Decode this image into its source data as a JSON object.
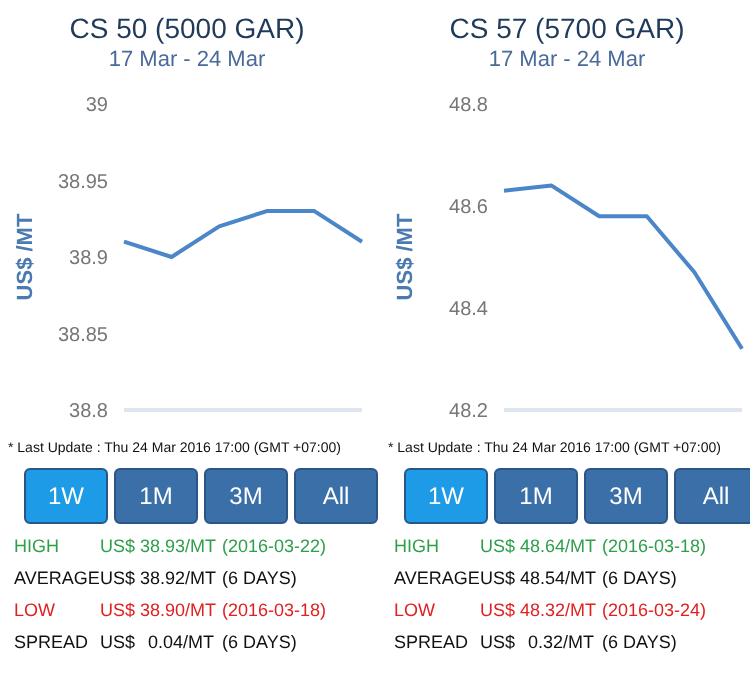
{
  "chart_data": [
    {
      "type": "line",
      "title": "CS 50 (5000 GAR)",
      "subtitle": "17 Mar - 24 Mar",
      "ylabel": "US$ /MT",
      "categories": [
        null,
        null,
        null,
        null,
        null,
        null
      ],
      "series": [
        {
          "color": "#4a86c8",
          "values": [
            38.91,
            38.9,
            38.92,
            38.93,
            38.93,
            38.91
          ]
        }
      ],
      "ylim": [
        38.8,
        39
      ],
      "yticks": [
        38.8,
        38.85,
        38.9,
        38.95,
        39
      ],
      "marker": "none",
      "annotations": [
        "* Last Update : Thu 24 Mar 2016 17:00 (GMT +07:00)",
        "1W",
        "1M",
        "3M",
        "All",
        "HIGH",
        "US$",
        "38.93/MT",
        "(2016-03-22)",
        "AVERAGE",
        "US$",
        "38.92/MT",
        "(6 DAYS)",
        "LOW",
        "US$",
        "38.90/MT",
        "(2016-03-18)",
        "SPREAD",
        "US$",
        "0.04/MT",
        "(6 DAYS)"
      ]
    },
    {
      "type": "line",
      "title": "CS 57 (5700 GAR)",
      "subtitle": "17 Mar - 24 Mar",
      "ylabel": "US$ /MT",
      "categories": [
        null,
        null,
        null,
        null,
        null,
        null
      ],
      "series": [
        {
          "color": "#4a86c8",
          "values": [
            48.63,
            48.64,
            48.58,
            48.58,
            48.47,
            48.32
          ]
        }
      ],
      "ylim": [
        48.2,
        48.8
      ],
      "yticks": [
        48.2,
        48.4,
        48.6,
        48.8
      ],
      "marker": "none",
      "annotations": [
        "* Last Update : Thu 24 Mar 2016 17:00 (GMT +07:00)",
        "1W",
        "1M",
        "3M",
        "All",
        "HIGH",
        "US$",
        "48.64/MT",
        "(2016-03-18)",
        "AVERAGE",
        "US$",
        "48.54/MT",
        "(6 DAYS)",
        "LOW",
        "US$",
        "48.32/MT",
        "(2016-03-24)",
        "SPREAD",
        "US$",
        "0.32/MT",
        "(6 DAYS)"
      ]
    }
  ]
}
